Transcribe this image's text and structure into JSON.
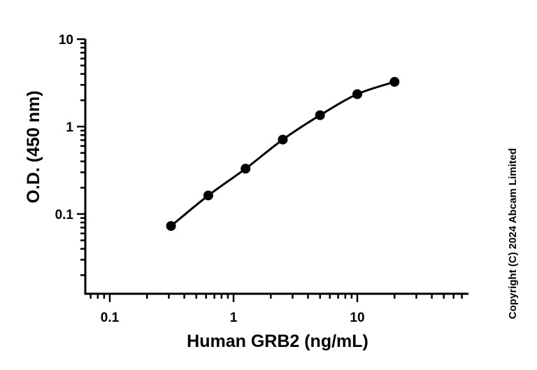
{
  "chart_data": {
    "type": "scatter",
    "xlabel": "Human GRB2 (ng/mL)",
    "ylabel": "O.D. (450 nm)",
    "x_scale": "log",
    "y_scale": "log",
    "xlim": [
      0.06,
      80
    ],
    "ylim": [
      0.01,
      10
    ],
    "x_ticks": [
      {
        "value": 0.1,
        "label": "0.1"
      },
      {
        "value": 1,
        "label": "1"
      },
      {
        "value": 10,
        "label": "10"
      }
    ],
    "y_ticks": [
      {
        "value": 10,
        "label": "10"
      },
      {
        "value": 1,
        "label": "1"
      },
      {
        "value": 0.1,
        "label": "0.1"
      }
    ],
    "grid": false,
    "series": [
      {
        "points": [
          {
            "x": 0.3125,
            "y": 0.073
          },
          {
            "x": 0.625,
            "y": 0.163
          },
          {
            "x": 1.25,
            "y": 0.33
          },
          {
            "x": 2.5,
            "y": 0.71
          },
          {
            "x": 5,
            "y": 1.35
          },
          {
            "x": 10,
            "y": 2.35
          },
          {
            "x": 20,
            "y": 3.25
          }
        ],
        "fit": "curve",
        "color": "#000000"
      }
    ],
    "annotations": [
      "Copyright (C) 2024 Abcam Limited"
    ]
  }
}
